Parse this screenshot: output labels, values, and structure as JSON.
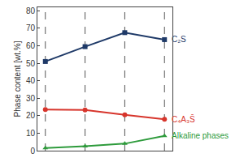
{
  "chart_data": {
    "type": "line",
    "y_label": "Phase content [wt.%]",
    "categories": [
      null,
      null,
      null,
      null
    ],
    "series": [
      {
        "name": "C₂S",
        "color": "#1f3a68",
        "marker": "square",
        "values": [
          51,
          59.5,
          67.5,
          63.5
        ]
      },
      {
        "name": "C₄A₃S̄",
        "color": "#d7352c",
        "marker": "circle",
        "values": [
          23.5,
          23.3,
          20.5,
          18
        ]
      },
      {
        "name": "Alkaline phases",
        "color": "#2e9b3c",
        "marker": "triangle-up",
        "values": [
          1.5,
          2.5,
          4,
          8.5
        ]
      }
    ],
    "ylim": [
      0,
      82
    ],
    "yticks": [
      0,
      10,
      20,
      30,
      40,
      50,
      60,
      70,
      80
    ],
    "grid": "x",
    "tick_labels": "y"
  }
}
